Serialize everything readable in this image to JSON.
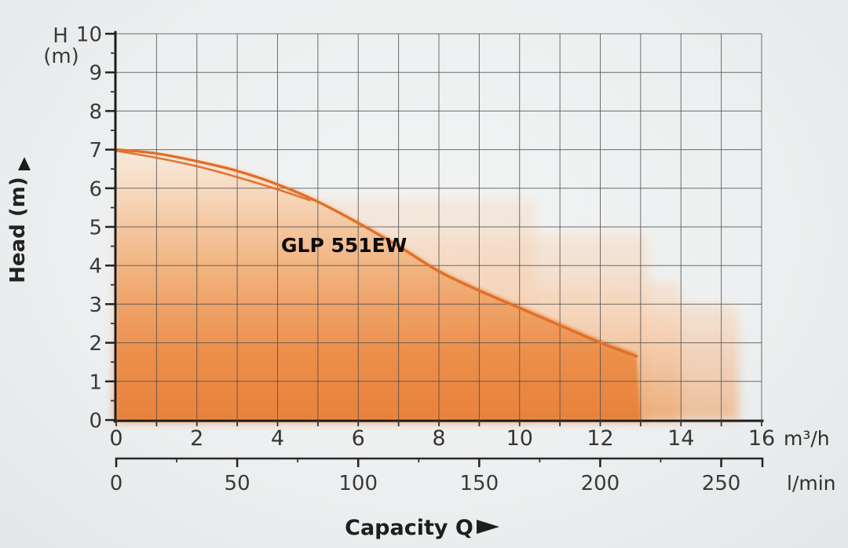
{
  "labels": {
    "h_corner": "H",
    "m_corner": "(m)"
  },
  "chart_data": {
    "type": "line",
    "title": "GLP 551EW",
    "xlabel": "Capacity Q",
    "ylabel": "Head (m)",
    "grid": true,
    "background": "#edeff0",
    "curve_color": "#e06f29",
    "fill_color_bottom": "#e8813a",
    "fill_color_top": "#f8ece1",
    "x_axis_primary": {
      "label": "m³/h",
      "range": [
        0,
        16
      ],
      "major_ticks": [
        0,
        2,
        4,
        6,
        8,
        10,
        12,
        14,
        16
      ],
      "minor_step": 1
    },
    "x_axis_secondary": {
      "label": "l/min",
      "range": [
        0,
        266.7
      ],
      "major_ticks": [
        0,
        50,
        100,
        150,
        200,
        250
      ],
      "minor_step": 25
    },
    "y_axis": {
      "label": "H (m)",
      "range": [
        0,
        10
      ],
      "major_ticks": [
        10,
        9,
        8,
        7,
        6,
        5,
        4,
        3,
        2,
        1,
        0
      ],
      "minor_step": 0.5
    },
    "series": [
      {
        "name": "GLP 551EW (upper curve)",
        "x": [
          0,
          1,
          2,
          3,
          4,
          5,
          6,
          7,
          8,
          9,
          10,
          11,
          12,
          12.9
        ],
        "y": [
          7.0,
          6.9,
          6.7,
          6.45,
          6.1,
          5.65,
          5.1,
          4.5,
          3.85,
          3.35,
          2.9,
          2.45,
          2.0,
          1.65
        ]
      },
      {
        "name": "GLP 551EW (lower curve)",
        "x": [
          0,
          1,
          2,
          3,
          4,
          4.8
        ],
        "y": [
          7.0,
          6.82,
          6.6,
          6.32,
          6.0,
          5.72
        ]
      }
    ],
    "shaded_envelope": {
      "description": "orange gradient operating area under curve with stepped light extensions",
      "steps_qh": [
        [
          10.4,
          5.75
        ],
        [
          13.2,
          4.85
        ],
        [
          14.0,
          3.6
        ],
        [
          15.43,
          3.0
        ]
      ]
    }
  }
}
